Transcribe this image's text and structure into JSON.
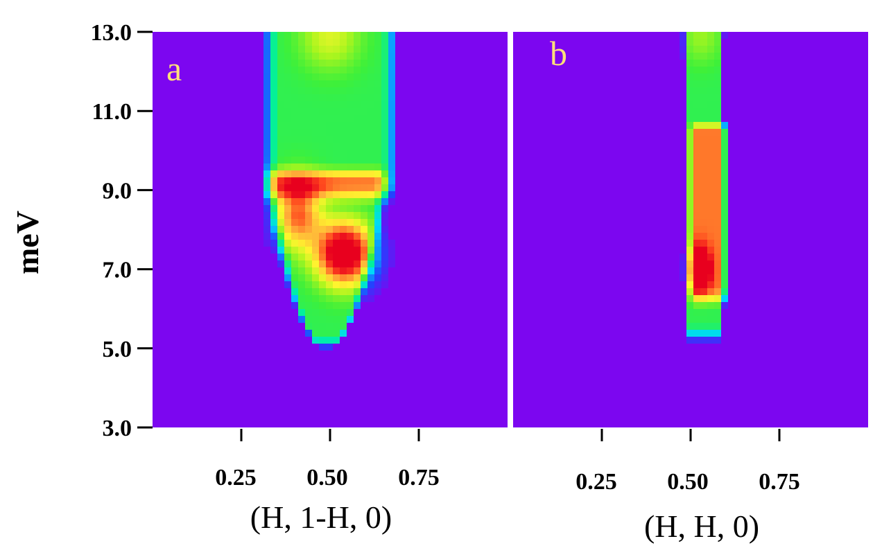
{
  "chart_data": [
    {
      "type": "heatmap",
      "panel_label": "a",
      "xlabel": "(H, 1-H, 0)",
      "ylabel": "meV",
      "xticks": [
        "0.25",
        "0.50",
        "0.75"
      ],
      "yticks": [
        "3.0",
        "5.0",
        "7.0",
        "9.0",
        "11.0",
        "13.0"
      ],
      "xlim": [
        0.0,
        1.0
      ],
      "ylim": [
        3.0,
        13.0
      ],
      "colormap": [
        "#7c06f0",
        "#1e46ff",
        "#00d7ff",
        "#00f0a0",
        "#3ef03a",
        "#aaf51e",
        "#fff52e",
        "#ffb23a",
        "#ff4a1e",
        "#e8001e"
      ],
      "background_color": "#7c06f0",
      "features": [
        {
          "kind": "column",
          "x_center": 0.5,
          "x_halfwidth": 0.19,
          "y_from": 8.8,
          "y_to": 13.0,
          "intensity": 0.42
        },
        {
          "kind": "cup",
          "x_center": 0.49,
          "x_halfwidth": 0.18,
          "y_bottom": 5.1,
          "y_top": 9.2,
          "intensity": 0.42
        },
        {
          "kind": "peak",
          "x": 0.54,
          "y": 7.4,
          "sx": 0.055,
          "sy": 0.55,
          "intensity": 0.75
        },
        {
          "kind": "peak",
          "x": 0.41,
          "y": 8.4,
          "sx": 0.045,
          "sy": 0.6,
          "intensity": 0.45
        },
        {
          "kind": "peak",
          "x": 0.5,
          "y": 12.9,
          "sx": 0.06,
          "sy": 0.6,
          "intensity": 0.2
        }
      ]
    },
    {
      "type": "heatmap",
      "panel_label": "b",
      "xlabel": "(H, H, 0)",
      "ylabel": "",
      "xticks": [
        "0.25",
        "0.50",
        "0.75"
      ],
      "yticks": [],
      "xlim": [
        0.0,
        1.0
      ],
      "ylim": [
        3.0,
        13.0
      ],
      "colormap": [
        "#7c06f0",
        "#1e46ff",
        "#00d7ff",
        "#00f0a0",
        "#3ef03a",
        "#aaf51e",
        "#fff52e",
        "#ffb23a",
        "#ff4a1e",
        "#e8001e"
      ],
      "background_color": "#7c06f0",
      "features": [
        {
          "kind": "column",
          "x_center": 0.535,
          "x_halfwidth": 0.055,
          "y_from": 5.3,
          "y_to": 13.0,
          "intensity": 0.42
        },
        {
          "kind": "column",
          "x_center": 0.555,
          "x_halfwidth": 0.06,
          "y_from": 6.2,
          "y_to": 10.4,
          "intensity": 0.42
        },
        {
          "kind": "peak",
          "x": 0.525,
          "y": 7.0,
          "sx": 0.02,
          "sy": 0.35,
          "intensity": 0.62
        },
        {
          "kind": "peak",
          "x": 0.53,
          "y": 12.9,
          "sx": 0.04,
          "sy": 0.5,
          "intensity": 0.12
        }
      ]
    }
  ]
}
